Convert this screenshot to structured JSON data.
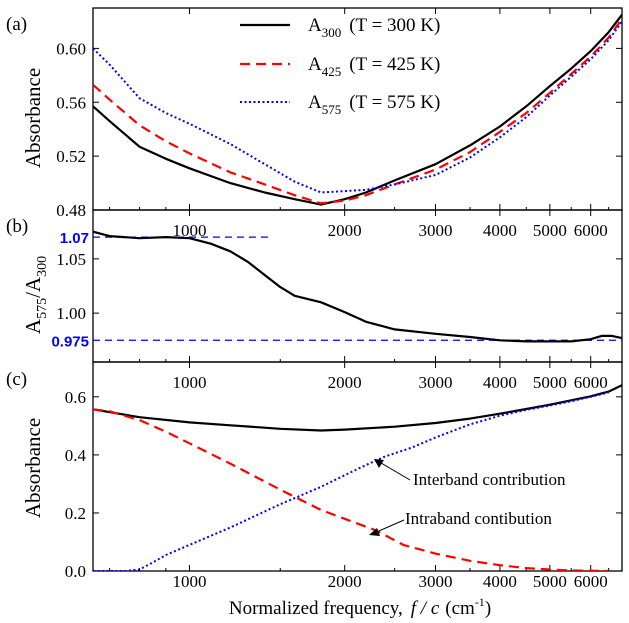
{
  "figure": {
    "xlabel": "Normalized frequency,",
    "xlabel_var": "f / c",
    "xlabel_unit_pre": "(cm",
    "xlabel_unit_sup": "-1",
    "xlabel_unit_post": ")",
    "colors": {
      "black": "#000000",
      "red": "#ff0000",
      "blue": "#0000ff"
    }
  },
  "chart_data": [
    {
      "type": "line",
      "panel_label": "(a)",
      "ylabel": "Absorbance",
      "x_scale": "log",
      "xlim": [
        650,
        6900
      ],
      "ylim": [
        0.48,
        0.63
      ],
      "x_tick_labels": [
        "1000",
        "2000",
        "3000",
        "4000",
        "5000",
        "6000"
      ],
      "x_ticks": [
        1000,
        2000,
        3000,
        4000,
        5000,
        6000
      ],
      "y_tick_labels": [
        "0.48",
        "0.52",
        "0.56",
        "0.60"
      ],
      "y_ticks": [
        0.48,
        0.52,
        0.56,
        0.6
      ],
      "legend": {
        "placement": "top-center",
        "entries": [
          {
            "base": "A",
            "sub": "300",
            "suffix": "(T = 300 K)",
            "color": "#000000",
            "dash": "solid"
          },
          {
            "base": "A",
            "sub": "425",
            "suffix": "(T = 425 K)",
            "color": "#ff0000",
            "dash": "dashed"
          },
          {
            "base": "A",
            "sub": "575",
            "suffix": "(T = 575 K)",
            "color": "#0000ff",
            "dash": "dotted"
          }
        ]
      },
      "series": [
        {
          "key": "A300",
          "color": "#000000",
          "dash": "solid",
          "x": [
            650,
            700,
            800,
            900,
            1000,
            1200,
            1400,
            1600,
            1800,
            2000,
            2200,
            2500,
            3000,
            3500,
            4000,
            4500,
            5000,
            5500,
            6000,
            6500,
            6900
          ],
          "y": [
            0.557,
            0.546,
            0.527,
            0.518,
            0.511,
            0.5,
            0.493,
            0.488,
            0.484,
            0.488,
            0.493,
            0.502,
            0.514,
            0.528,
            0.542,
            0.557,
            0.572,
            0.585,
            0.598,
            0.612,
            0.625
          ]
        },
        {
          "key": "A425",
          "color": "#ff0000",
          "dash": "dashed",
          "x": [
            650,
            700,
            800,
            900,
            1000,
            1200,
            1400,
            1600,
            1800,
            2000,
            2200,
            2500,
            3000,
            3500,
            4000,
            4500,
            5000,
            5500,
            6000,
            6500,
            6900
          ],
          "y": [
            0.573,
            0.562,
            0.543,
            0.531,
            0.522,
            0.508,
            0.499,
            0.491,
            0.485,
            0.487,
            0.491,
            0.499,
            0.51,
            0.523,
            0.538,
            0.552,
            0.567,
            0.581,
            0.594,
            0.608,
            0.622
          ]
        },
        {
          "key": "A575",
          "color": "#0000ff",
          "dash": "dotted",
          "x": [
            650,
            700,
            800,
            900,
            1000,
            1200,
            1400,
            1600,
            1800,
            2000,
            2200,
            2500,
            3000,
            3500,
            4000,
            4500,
            5000,
            5500,
            6000,
            6500,
            6900
          ],
          "y": [
            0.6,
            0.588,
            0.563,
            0.552,
            0.544,
            0.529,
            0.514,
            0.501,
            0.493,
            0.494,
            0.495,
            0.499,
            0.506,
            0.519,
            0.534,
            0.549,
            0.565,
            0.579,
            0.592,
            0.606,
            0.62
          ]
        }
      ]
    },
    {
      "type": "line",
      "panel_label": "(b)",
      "ylabel_base": "A",
      "ylabel_sub1": "575",
      "ylabel_sep": "/A",
      "ylabel_sub2": "300",
      "x_scale": "log",
      "xlim": [
        650,
        6900
      ],
      "ylim": [
        0.955,
        1.095
      ],
      "x_tick_labels": [
        "1000",
        "2000",
        "3000",
        "4000",
        "5000",
        "6000"
      ],
      "x_ticks": [
        1000,
        2000,
        3000,
        4000,
        5000,
        6000
      ],
      "y_tick_labels": [
        "1.00",
        "1.05"
      ],
      "y_ticks": [
        1.0,
        1.05
      ],
      "reference_lines": [
        {
          "label": "1.07",
          "y": 1.07,
          "x_from": 650,
          "x_to": 1450,
          "color": "#0000ff"
        },
        {
          "label": "0.975",
          "y": 0.975,
          "x_from": 650,
          "x_to": 6900,
          "color": "#0000ff"
        }
      ],
      "series": [
        {
          "key": "ratio",
          "color": "#000000",
          "dash": "solid",
          "x": [
            650,
            700,
            800,
            900,
            1000,
            1100,
            1200,
            1300,
            1400,
            1500,
            1600,
            1800,
            2000,
            2200,
            2500,
            3000,
            3500,
            4000,
            4500,
            5000,
            5500,
            6000,
            6300,
            6600,
            6900
          ],
          "y": [
            1.075,
            1.071,
            1.069,
            1.07,
            1.069,
            1.064,
            1.057,
            1.047,
            1.035,
            1.024,
            1.016,
            1.01,
            1.001,
            0.992,
            0.985,
            0.981,
            0.978,
            0.975,
            0.974,
            0.974,
            0.974,
            0.976,
            0.979,
            0.979,
            0.977
          ]
        }
      ]
    },
    {
      "type": "line",
      "panel_label": "(c)",
      "ylabel": "Absorbance",
      "x_scale": "log",
      "xlim": [
        650,
        6900
      ],
      "ylim": [
        0.0,
        0.72
      ],
      "x_tick_labels": [
        "1000",
        "2000",
        "3000",
        "4000",
        "5000",
        "6000"
      ],
      "x_ticks": [
        1000,
        2000,
        3000,
        4000,
        5000,
        6000
      ],
      "y_tick_labels": [
        "0.0",
        "0.2",
        "0.4",
        "0.6"
      ],
      "y_ticks": [
        0.0,
        0.2,
        0.4,
        0.6
      ],
      "annotations": [
        {
          "text": "Interband contribution",
          "target_x": 2250,
          "target_y": 0.38,
          "at": "right of arrow"
        },
        {
          "text": "Intraband contibution",
          "target_x": 2300,
          "target_y": 0.14,
          "at": "right of arrow"
        }
      ],
      "series": [
        {
          "key": "total",
          "color": "#000000",
          "dash": "solid",
          "x": [
            650,
            800,
            1000,
            1200,
            1500,
            1800,
            2000,
            2500,
            3000,
            3500,
            4000,
            4500,
            5000,
            5500,
            6000,
            6500,
            6900
          ],
          "y": [
            0.557,
            0.53,
            0.512,
            0.502,
            0.49,
            0.484,
            0.487,
            0.497,
            0.51,
            0.525,
            0.542,
            0.558,
            0.573,
            0.588,
            0.602,
            0.618,
            0.64
          ]
        },
        {
          "key": "intraband",
          "color": "#ff0000",
          "dash": "dashed",
          "x": [
            650,
            700,
            800,
            900,
            1000,
            1200,
            1500,
            1800,
            2000,
            2300,
            2600,
            3000,
            3500,
            4000,
            4500,
            5000,
            5500,
            6000,
            6500
          ],
          "y": [
            0.557,
            0.55,
            0.52,
            0.48,
            0.44,
            0.37,
            0.28,
            0.21,
            0.18,
            0.14,
            0.09,
            0.06,
            0.035,
            0.02,
            0.01,
            0.005,
            0.002,
            0.001,
            0.0
          ]
        },
        {
          "key": "interband",
          "color": "#0000ff",
          "dash": "dotted",
          "x": [
            650,
            700,
            750,
            800,
            850,
            900,
            1000,
            1200,
            1500,
            1800,
            2000,
            2200,
            2400,
            2700,
            3000,
            3500,
            4000,
            4500,
            5000,
            5500,
            6000,
            6500
          ],
          "y": [
            0.0,
            0.0,
            0.0,
            0.005,
            0.03,
            0.055,
            0.09,
            0.15,
            0.23,
            0.29,
            0.33,
            0.365,
            0.395,
            0.425,
            0.46,
            0.505,
            0.535,
            0.555,
            0.57,
            0.585,
            0.6,
            0.615
          ]
        }
      ]
    }
  ]
}
